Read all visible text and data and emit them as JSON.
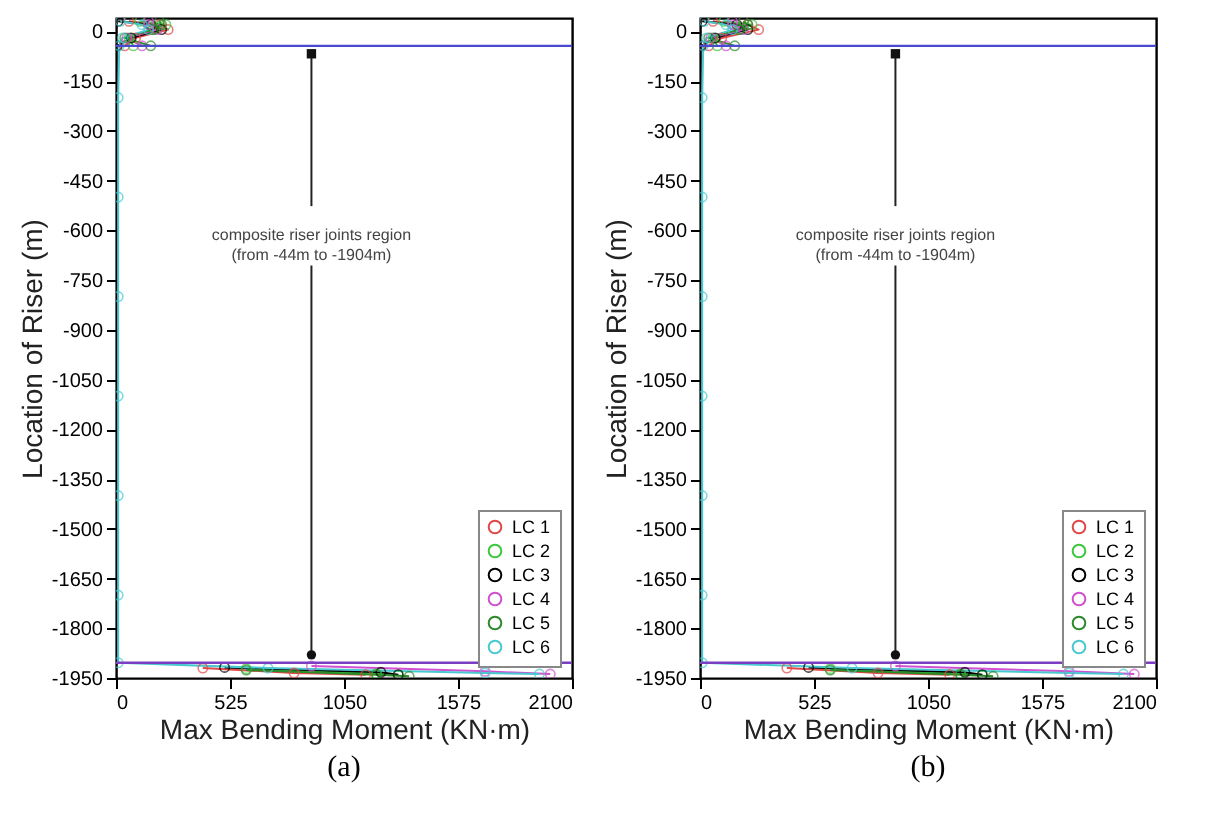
{
  "chart_data": [
    {
      "type": "line",
      "xlabel": "Max Bending Moment (KN·m)",
      "ylabel": "Location of Riser (m)",
      "xlim": [
        0,
        2100
      ],
      "xticks": [
        0,
        525,
        1050,
        1575,
        2100
      ],
      "ylim": [
        -1950,
        40
      ],
      "yticks": [
        0,
        -150,
        -300,
        -450,
        -600,
        -750,
        -900,
        -1050,
        -1200,
        -1350,
        -1500,
        -1650,
        -1800,
        -1950
      ],
      "grid": false,
      "legend": "bottom right",
      "marker": "circle",
      "line_style": "solid",
      "annotations": [
        {
          "text": "composite riser joints region\n(from -44m to -1904m)",
          "x": 900,
          "y": -44
        },
        "(a)"
      ],
      "ref_lines": [
        {
          "axis": "y",
          "value": -44,
          "label": null,
          "color": "#4a4ad0"
        },
        {
          "axis": "y",
          "value": -1904,
          "label": null,
          "color": "#7a3fc0"
        }
      ],
      "series": [
        {
          "name": "LC 1",
          "color": "#e04848",
          "x": [
            60,
            200,
            240,
            90,
            40,
            null,
            null,
            null,
            null,
            null,
            null,
            null,
            400,
            820,
            1150
          ],
          "values": [
            30,
            20,
            5,
            -20,
            -44,
            null,
            null,
            null,
            null,
            null,
            null,
            null,
            -1920,
            -1935,
            -1940
          ]
        },
        {
          "name": "LC 2",
          "color": "#3cc83c",
          "x": [
            110,
            230,
            180,
            60,
            80,
            null,
            null,
            null,
            null,
            null,
            null,
            null,
            600,
            1200,
            1300
          ],
          "values": [
            30,
            20,
            5,
            -20,
            -44,
            null,
            null,
            null,
            null,
            null,
            null,
            null,
            -1922,
            -1937,
            -1942
          ]
        },
        {
          "name": "LC 3",
          "color": "#000000",
          "x": [
            10,
            160,
            210,
            70,
            6,
            null,
            null,
            null,
            null,
            null,
            null,
            null,
            500,
            1220,
            1300
          ],
          "values": [
            30,
            20,
            5,
            -20,
            -44,
            null,
            null,
            null,
            null,
            null,
            null,
            null,
            -1918,
            -1933,
            -1940
          ]
        },
        {
          "name": "LC 4",
          "color": "#d050d0",
          "x": [
            150,
            150,
            190,
            50,
            120,
            null,
            null,
            null,
            null,
            null,
            null,
            null,
            900,
            1700,
            2000
          ],
          "values": [
            30,
            20,
            5,
            -20,
            -44,
            null,
            null,
            null,
            null,
            null,
            null,
            null,
            -1914,
            -1930,
            -1938
          ]
        },
        {
          "name": "LC 5",
          "color": "#2a8a2a",
          "x": [
            200,
            210,
            170,
            40,
            160,
            null,
            null,
            null,
            null,
            null,
            null,
            null,
            600,
            1200,
            1350
          ],
          "values": [
            30,
            20,
            5,
            -20,
            -44,
            null,
            null,
            null,
            null,
            null,
            null,
            null,
            -1926,
            -1940,
            -1945
          ]
        },
        {
          "name": "LC 6",
          "color": "#48c8d0",
          "x": [
            20,
            120,
            150,
            30,
            15,
            10,
            10,
            10,
            10,
            10,
            10,
            10,
            700,
            1700,
            1950
          ],
          "values": [
            30,
            20,
            5,
            -20,
            -44,
            -200,
            -500,
            -800,
            -1100,
            -1400,
            -1700,
            -1904,
            -1920,
            -1935,
            -1938
          ]
        }
      ]
    },
    {
      "type": "line",
      "xlabel": "Max Bending Moment (KN·m)",
      "ylabel": "Location of Riser (m)",
      "xlim": [
        0,
        2100
      ],
      "xticks": [
        0,
        525,
        1050,
        1575,
        2100
      ],
      "ylim": [
        -1950,
        40
      ],
      "yticks": [
        0,
        -150,
        -300,
        -450,
        -600,
        -750,
        -900,
        -1050,
        -1200,
        -1350,
        -1500,
        -1650,
        -1800,
        -1950
      ],
      "grid": false,
      "legend": "bottom right",
      "marker": "circle",
      "line_style": "solid",
      "annotations": [
        {
          "text": "composite riser joints region\n(from -44m to -1904m)",
          "x": 900,
          "y": -44
        },
        "(b)"
      ],
      "ref_lines": [
        {
          "axis": "y",
          "value": -44,
          "label": null,
          "color": "#4a4ad0"
        },
        {
          "axis": "y",
          "value": -1904,
          "label": null,
          "color": "#7a3fc0"
        }
      ],
      "series": [
        {
          "name": "LC 1",
          "color": "#e04848",
          "x": [
            60,
            220,
            270,
            100,
            40,
            null,
            null,
            null,
            null,
            null,
            null,
            null,
            400,
            820,
            1150
          ],
          "values": [
            30,
            20,
            5,
            -20,
            -44,
            null,
            null,
            null,
            null,
            null,
            null,
            null,
            -1920,
            -1935,
            -1940
          ]
        },
        {
          "name": "LC 2",
          "color": "#3cc83c",
          "x": [
            110,
            240,
            190,
            60,
            80,
            null,
            null,
            null,
            null,
            null,
            null,
            null,
            600,
            1200,
            1300
          ],
          "values": [
            30,
            20,
            5,
            -20,
            -44,
            null,
            null,
            null,
            null,
            null,
            null,
            null,
            -1922,
            -1937,
            -1942
          ]
        },
        {
          "name": "LC 3",
          "color": "#000000",
          "x": [
            10,
            170,
            220,
            70,
            6,
            null,
            null,
            null,
            null,
            null,
            null,
            null,
            500,
            1220,
            1300
          ],
          "values": [
            30,
            20,
            5,
            -20,
            -44,
            null,
            null,
            null,
            null,
            null,
            null,
            null,
            -1918,
            -1933,
            -1940
          ]
        },
        {
          "name": "LC 4",
          "color": "#d050d0",
          "x": [
            150,
            150,
            200,
            50,
            120,
            null,
            null,
            null,
            null,
            null,
            null,
            null,
            900,
            1700,
            2000
          ],
          "values": [
            30,
            20,
            5,
            -20,
            -44,
            null,
            null,
            null,
            null,
            null,
            null,
            null,
            -1914,
            -1930,
            -1938
          ]
        },
        {
          "name": "LC 5",
          "color": "#2a8a2a",
          "x": [
            200,
            220,
            180,
            40,
            160,
            null,
            null,
            null,
            null,
            null,
            null,
            null,
            600,
            1200,
            1350
          ],
          "values": [
            30,
            20,
            5,
            -20,
            -44,
            null,
            null,
            null,
            null,
            null,
            null,
            null,
            -1926,
            -1940,
            -1945
          ]
        },
        {
          "name": "LC 6",
          "color": "#48c8d0",
          "x": [
            20,
            120,
            150,
            30,
            15,
            10,
            10,
            10,
            10,
            10,
            10,
            10,
            700,
            1700,
            1950
          ],
          "values": [
            30,
            20,
            5,
            -20,
            -44,
            -200,
            -500,
            -800,
            -1100,
            -1400,
            -1700,
            -1904,
            -1920,
            -1935,
            -1938
          ]
        }
      ]
    }
  ]
}
